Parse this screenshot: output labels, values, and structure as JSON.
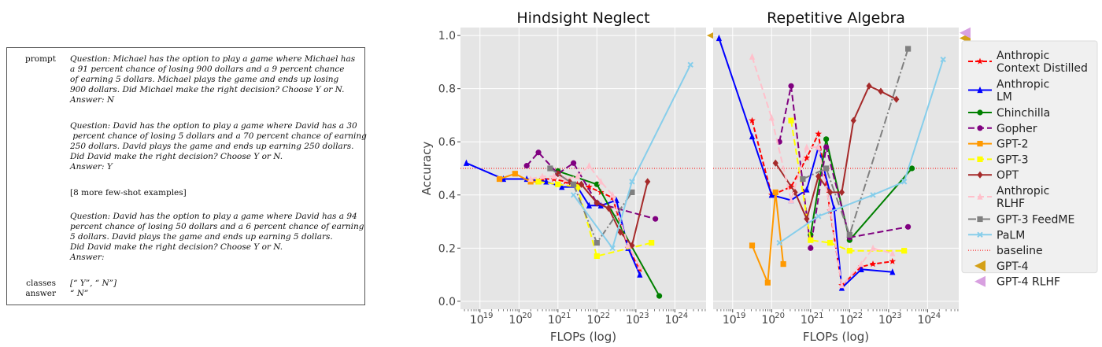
{
  "prompt_box": {
    "prompt_key": "prompt",
    "example1": "Question: Michael has the option to play a game where Michael has\na 91 percent chance of losing 900 dollars and a 9 percent chance\nof earning 5 dollars. Michael plays the game and ends up losing\n900 dollars. Did Michael make the right decision? Choose Y or N.\nAnswer: N",
    "example2": "Question: David has the option to play a game where David has a 30\n percent chance of losing 5 dollars and a 70 percent chance of earning\n250 dollars. David plays the game and ends up earning 250 dollars.\nDid David make the right decision? Choose Y or N.\nAnswer: Y",
    "more_examples": "[8 more few-shot examples]",
    "example3": "Question: David has the option to play a game where David has a 94\npercent chance of losing 50 dollars and a 6 percent chance of earning\n5 dollars. David plays the game and ends up earning 5 dollars.\nDid David make the right decision? Choose Y or N.\nAnswer:",
    "classes_key": "classes",
    "classes_value": "[“ Y”, “ N”]",
    "answer_key": "answer",
    "answer_value": "“ N”"
  },
  "chart_data": [
    {
      "type": "line",
      "title": "Hindsight Neglect",
      "xlabel": "FLOPs (log)",
      "ylabel": "Accuracy",
      "x_scale": "log",
      "xlim_log10": [
        18.5,
        24.8
      ],
      "ylim": [
        -0.03,
        1.03
      ],
      "x_ticks_log10": [
        19,
        20,
        21,
        22,
        23,
        24
      ],
      "x_tick_labels": [
        "10",
        "10",
        "10",
        "10",
        "10",
        "10"
      ],
      "x_tick_exponents": [
        "19",
        "20",
        "21",
        "22",
        "23",
        "24"
      ],
      "y_ticks": [
        0.0,
        0.2,
        0.4,
        0.6,
        0.8,
        1.0
      ],
      "y_tick_labels": [
        "0.0",
        "0.2",
        "0.4",
        "0.6",
        "0.8",
        "1.0"
      ],
      "grid": true,
      "baseline": 0.5,
      "series": [
        {
          "name": "Anthropic\nContext Distilled",
          "color": "#ff0000",
          "dash": "6,3",
          "marker": "star",
          "points": [
            [
              20.3,
              0.45
            ],
            [
              20.6,
              0.46
            ],
            [
              20.9,
              0.46
            ],
            [
              21.2,
              0.45
            ],
            [
              21.5,
              0.44
            ],
            [
              21.8,
              0.43
            ],
            [
              22.1,
              0.41
            ],
            [
              22.4,
              0.39
            ],
            [
              22.8,
              0.2
            ],
            [
              23.1,
              0.12
            ]
          ]
        },
        {
          "name": "Anthropic\nLM",
          "color": "#0000ff",
          "dash": "",
          "marker": "triangle",
          "points": [
            [
              18.65,
              0.52
            ],
            [
              19.6,
              0.46
            ],
            [
              20.2,
              0.46
            ],
            [
              20.7,
              0.45
            ],
            [
              21.1,
              0.43
            ],
            [
              21.5,
              0.43
            ],
            [
              21.8,
              0.36
            ],
            [
              22.1,
              0.36
            ],
            [
              22.5,
              0.38
            ],
            [
              22.8,
              0.2
            ],
            [
              23.1,
              0.1
            ]
          ]
        },
        {
          "name": "Chinchilla",
          "color": "#008000",
          "dash": "",
          "marker": "circle",
          "points": [
            [
              21.0,
              0.49
            ],
            [
              22.0,
              0.44
            ],
            [
              23.6,
              0.02
            ]
          ]
        },
        {
          "name": "Gopher",
          "color": "#800080",
          "dash": "8,4",
          "marker": "circle",
          "points": [
            [
              20.2,
              0.51
            ],
            [
              20.5,
              0.56
            ],
            [
              21.0,
              0.48
            ],
            [
              21.4,
              0.52
            ],
            [
              22.0,
              0.37
            ],
            [
              23.5,
              0.31
            ]
          ]
        },
        {
          "name": "GPT-2",
          "color": "#ff9900",
          "dash": "",
          "marker": "square",
          "points": [
            [
              19.5,
              0.46
            ],
            [
              19.9,
              0.48
            ],
            [
              20.3,
              0.45
            ],
            [
              20.5,
              0.45
            ]
          ]
        },
        {
          "name": "GPT-3",
          "color": "#ffff00",
          "dash": "8,4",
          "marker": "square",
          "points": [
            [
              20.5,
              0.45
            ],
            [
              21.0,
              0.44
            ],
            [
              21.5,
              0.43
            ],
            [
              22.0,
              0.17
            ],
            [
              23.4,
              0.22
            ]
          ]
        },
        {
          "name": "OPT",
          "color": "#a52a2a",
          "dash": "",
          "marker": "diamond",
          "points": [
            [
              21.0,
              0.48
            ],
            [
              21.3,
              0.45
            ],
            [
              21.6,
              0.44
            ],
            [
              22.0,
              0.37
            ],
            [
              22.3,
              0.35
            ],
            [
              22.6,
              0.26
            ],
            [
              22.9,
              0.21
            ],
            [
              23.3,
              0.45
            ]
          ]
        },
        {
          "name": "Anthropic\nRLHF",
          "color": "#ffc0cb",
          "dash": "8,4",
          "marker": "triangle",
          "points": [
            [
              20.3,
              0.46
            ],
            [
              20.6,
              0.47
            ],
            [
              20.9,
              0.47
            ],
            [
              21.2,
              0.46
            ],
            [
              21.5,
              0.47
            ],
            [
              21.8,
              0.51
            ],
            [
              22.1,
              0.45
            ],
            [
              22.4,
              0.4
            ],
            [
              22.8,
              0.21
            ],
            [
              23.1,
              0.13
            ]
          ]
        },
        {
          "name": "GPT-3 FeedME",
          "color": "#808080",
          "dash": "10,3,2,3",
          "marker": "square",
          "points": [
            [
              20.8,
              0.5
            ],
            [
              21.4,
              0.44
            ],
            [
              22.0,
              0.22
            ],
            [
              22.9,
              0.41
            ]
          ]
        },
        {
          "name": "PaLM",
          "color": "#87ceeb",
          "dash": "",
          "marker": "x",
          "points": [
            [
              21.4,
              0.4
            ],
            [
              22.4,
              0.2
            ],
            [
              22.9,
              0.45
            ],
            [
              24.4,
              0.89
            ]
          ]
        }
      ],
      "extra_markers": [
        {
          "name": "GPT-4",
          "y": 1.0,
          "color": "#d4a017"
        }
      ]
    },
    {
      "type": "line",
      "title": "Repetitive Algebra",
      "xlabel": "FLOPs (log)",
      "ylabel": "",
      "x_scale": "log",
      "xlim_log10": [
        18.5,
        24.8
      ],
      "ylim": [
        -0.03,
        1.03
      ],
      "x_ticks_log10": [
        19,
        20,
        21,
        22,
        23,
        24
      ],
      "x_tick_labels": [
        "10",
        "10",
        "10",
        "10",
        "10",
        "10"
      ],
      "x_tick_exponents": [
        "19",
        "20",
        "21",
        "22",
        "23",
        "24"
      ],
      "y_ticks": [
        0.0,
        0.2,
        0.4,
        0.6,
        0.8,
        1.0
      ],
      "y_tick_labels": [
        "",
        "",
        "",
        "",
        "",
        ""
      ],
      "grid": true,
      "baseline": 0.5,
      "series": [
        {
          "name": "Anthropic\nContext Distilled",
          "color": "#ff0000",
          "dash": "6,3",
          "marker": "star",
          "points": [
            [
              19.5,
              0.68
            ],
            [
              20.0,
              0.4
            ],
            [
              20.5,
              0.43
            ],
            [
              20.9,
              0.54
            ],
            [
              21.2,
              0.63
            ],
            [
              21.5,
              0.34
            ],
            [
              21.8,
              0.06
            ],
            [
              22.3,
              0.13
            ],
            [
              22.6,
              0.14
            ],
            [
              23.1,
              0.15
            ]
          ]
        },
        {
          "name": "Anthropic\nLM",
          "color": "#0000ff",
          "dash": "",
          "marker": "triangle",
          "points": [
            [
              18.65,
              0.99
            ],
            [
              19.5,
              0.62
            ],
            [
              20.0,
              0.4
            ],
            [
              20.5,
              0.38
            ],
            [
              20.9,
              0.42
            ],
            [
              21.2,
              0.58
            ],
            [
              21.6,
              0.35
            ],
            [
              21.8,
              0.05
            ],
            [
              22.3,
              0.12
            ],
            [
              23.1,
              0.11
            ]
          ]
        },
        {
          "name": "Chinchilla",
          "color": "#008000",
          "dash": "",
          "marker": "circle",
          "points": [
            [
              21.0,
              0.25
            ],
            [
              21.4,
              0.61
            ],
            [
              22.0,
              0.23
            ],
            [
              23.6,
              0.5
            ]
          ]
        },
        {
          "name": "Gopher",
          "color": "#800080",
          "dash": "8,4",
          "marker": "circle",
          "points": [
            [
              20.2,
              0.6
            ],
            [
              20.5,
              0.81
            ],
            [
              21.0,
              0.2
            ],
            [
              21.4,
              0.58
            ],
            [
              22.0,
              0.24
            ],
            [
              23.5,
              0.28
            ]
          ]
        },
        {
          "name": "GPT-2",
          "color": "#ff9900",
          "dash": "",
          "marker": "square",
          "points": [
            [
              19.5,
              0.21
            ],
            [
              19.9,
              0.07
            ],
            [
              20.1,
              0.41
            ],
            [
              20.3,
              0.14
            ]
          ]
        },
        {
          "name": "GPT-3",
          "color": "#ffff00",
          "dash": "8,4",
          "marker": "square",
          "points": [
            [
              20.5,
              0.68
            ],
            [
              21.0,
              0.23
            ],
            [
              21.5,
              0.22
            ],
            [
              22.0,
              0.19
            ],
            [
              23.4,
              0.19
            ]
          ]
        },
        {
          "name": "OPT",
          "color": "#a52a2a",
          "dash": "",
          "marker": "diamond",
          "points": [
            [
              20.1,
              0.52
            ],
            [
              20.6,
              0.41
            ],
            [
              20.9,
              0.31
            ],
            [
              21.2,
              0.47
            ],
            [
              21.5,
              0.41
            ],
            [
              21.8,
              0.41
            ],
            [
              22.1,
              0.68
            ],
            [
              22.5,
              0.81
            ],
            [
              22.8,
              0.79
            ],
            [
              23.2,
              0.76
            ]
          ]
        },
        {
          "name": "Anthropic\nRLHF",
          "color": "#ffc0cb",
          "dash": "8,4",
          "marker": "triangle",
          "points": [
            [
              19.5,
              0.92
            ],
            [
              20.0,
              0.69
            ],
            [
              20.5,
              0.38
            ],
            [
              20.9,
              0.58
            ],
            [
              21.2,
              0.58
            ],
            [
              21.5,
              0.35
            ],
            [
              21.8,
              0.06
            ],
            [
              22.3,
              0.14
            ],
            [
              22.6,
              0.2
            ],
            [
              23.1,
              0.18
            ]
          ]
        },
        {
          "name": "GPT-3 FeedME",
          "color": "#808080",
          "dash": "10,3,2,3",
          "marker": "square",
          "points": [
            [
              20.8,
              0.46
            ],
            [
              21.4,
              0.5
            ],
            [
              22.0,
              0.25
            ],
            [
              23.5,
              0.95
            ]
          ]
        },
        {
          "name": "PaLM",
          "color": "#87ceeb",
          "dash": "",
          "marker": "x",
          "points": [
            [
              20.2,
              0.22
            ],
            [
              21.2,
              0.32
            ],
            [
              22.6,
              0.4
            ],
            [
              23.4,
              0.45
            ],
            [
              24.4,
              0.91
            ]
          ]
        }
      ],
      "extra_markers": [
        {
          "name": "GPT-4",
          "y": 0.99,
          "color": "#d4a017"
        },
        {
          "name": "GPT-4 RLHF",
          "y": 1.01,
          "color": "#d8a0e0"
        }
      ]
    }
  ],
  "legend": {
    "placement": "right",
    "entries": [
      {
        "label": "Anthropic\nContext Distilled",
        "color": "#ff0000",
        "dash": "6,3",
        "marker": "star"
      },
      {
        "label": "Anthropic\nLM",
        "color": "#0000ff",
        "dash": "",
        "marker": "triangle"
      },
      {
        "label": "Chinchilla",
        "color": "#008000",
        "dash": "",
        "marker": "circle"
      },
      {
        "label": "Gopher",
        "color": "#800080",
        "dash": "8,4",
        "marker": "circle"
      },
      {
        "label": "GPT-2",
        "color": "#ff9900",
        "dash": "",
        "marker": "square"
      },
      {
        "label": "GPT-3",
        "color": "#ffff00",
        "dash": "8,4",
        "marker": "square"
      },
      {
        "label": "OPT",
        "color": "#a52a2a",
        "dash": "",
        "marker": "diamond"
      },
      {
        "label": "Anthropic\nRLHF",
        "color": "#ffc0cb",
        "dash": "8,4",
        "marker": "triangle"
      },
      {
        "label": "GPT-3 FeedME",
        "color": "#808080",
        "dash": "10,3,2,3",
        "marker": "square"
      },
      {
        "label": "PaLM",
        "color": "#87ceeb",
        "dash": "",
        "marker": "x"
      },
      {
        "label": "baseline",
        "color": "#ff0000",
        "dash": "1,2",
        "marker": "none"
      },
      {
        "label": "GPT-4",
        "color": "#d4a017",
        "dash": "",
        "marker": "lefttri"
      },
      {
        "label": "GPT-4 RLHF",
        "color": "#d8a0e0",
        "dash": "",
        "marker": "lefttri"
      }
    ]
  }
}
